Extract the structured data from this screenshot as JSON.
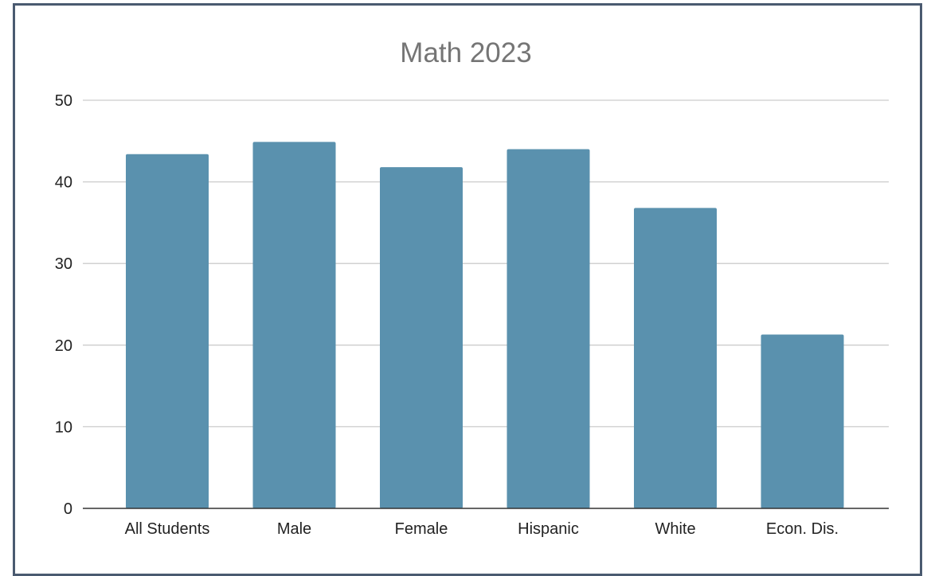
{
  "chart_data": {
    "type": "bar",
    "title": "Math 2023",
    "categories": [
      "All Students",
      "Male",
      "Female",
      "Hispanic",
      "White",
      "Econ. Dis."
    ],
    "values": [
      43.4,
      44.9,
      41.8,
      44.0,
      36.8,
      21.3
    ],
    "xlabel": "",
    "ylabel": "",
    "ylim": [
      0,
      50
    ],
    "yticks": [
      "0",
      "10",
      "20",
      "30",
      "40",
      "50"
    ],
    "grid": true,
    "legend": "none",
    "bar_color": "#5a91ae",
    "grid_color": "#cccccc",
    "axis_color": "#333333",
    "frame_color": "#4a5a70"
  }
}
